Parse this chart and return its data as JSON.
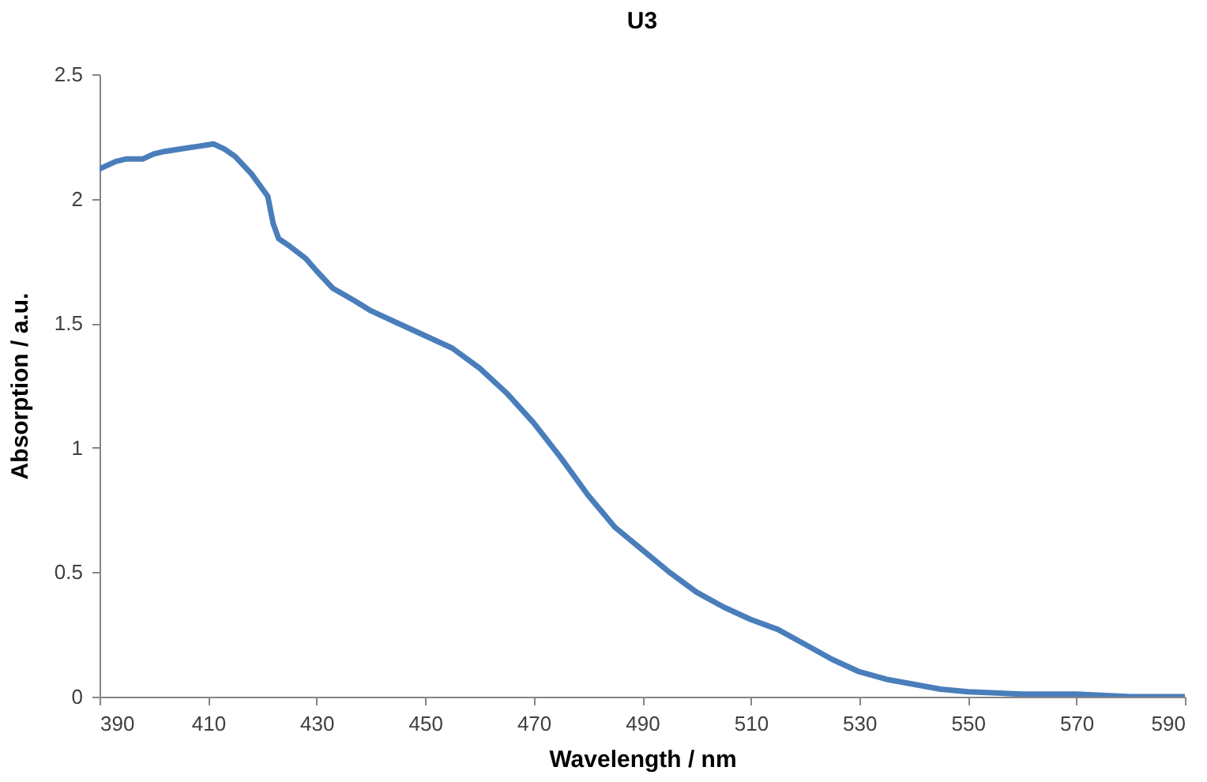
{
  "chart_data": {
    "type": "line",
    "title": "U3",
    "xlabel": "Wavelength / nm",
    "ylabel": "Absorption / a.u.",
    "x": [
      390,
      393,
      395,
      398,
      400,
      402,
      405,
      408,
      411,
      413,
      415,
      418,
      420,
      421,
      422,
      423,
      425,
      428,
      430,
      433,
      437,
      440,
      445,
      450,
      455,
      460,
      465,
      470,
      475,
      480,
      485,
      490,
      495,
      500,
      505,
      510,
      515,
      520,
      525,
      530,
      535,
      540,
      545,
      550,
      560,
      570,
      580,
      590
    ],
    "series": [
      {
        "color": "#4a7ebb",
        "values": [
          2.12,
          2.15,
          2.16,
          2.16,
          2.18,
          2.19,
          2.2,
          2.21,
          2.22,
          2.2,
          2.17,
          2.1,
          2.04,
          2.01,
          1.9,
          1.84,
          1.81,
          1.76,
          1.71,
          1.64,
          1.59,
          1.55,
          1.5,
          1.45,
          1.4,
          1.32,
          1.22,
          1.1,
          0.96,
          0.81,
          0.68,
          0.59,
          0.5,
          0.42,
          0.36,
          0.31,
          0.27,
          0.21,
          0.15,
          0.1,
          0.07,
          0.05,
          0.03,
          0.02,
          0.01,
          0.01,
          0.0,
          0.0
        ]
      }
    ],
    "xlim": [
      390,
      590
    ],
    "xticks": [
      390,
      410,
      430,
      450,
      470,
      490,
      510,
      530,
      550,
      570,
      590
    ],
    "ylim": [
      0,
      2.5
    ],
    "yticks": [
      0,
      0.5,
      1,
      1.5,
      2,
      2.5
    ],
    "grid": false,
    "marker": "none",
    "line_style": "solid"
  }
}
